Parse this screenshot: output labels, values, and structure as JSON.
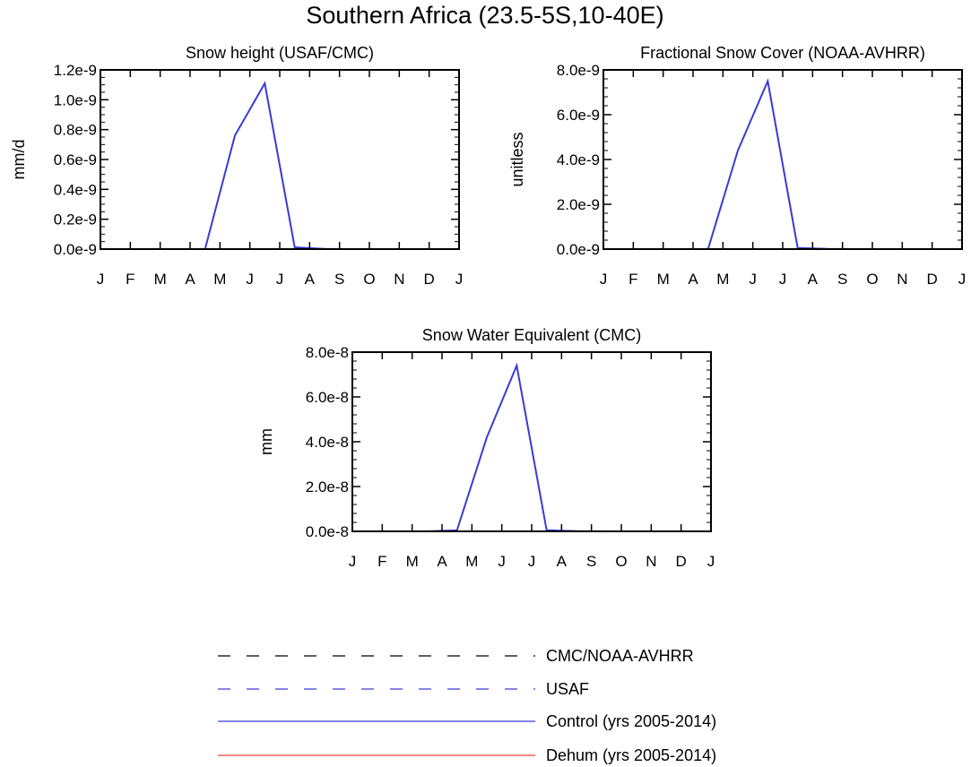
{
  "figure": {
    "title": "Southern Africa (23.5-5S,10-40E)"
  },
  "months": [
    "J",
    "F",
    "M",
    "A",
    "M",
    "J",
    "J",
    "A",
    "S",
    "O",
    "N",
    "D",
    "J"
  ],
  "colors": {
    "axis": "#000000",
    "cmc_noaa": "#000000",
    "usaf": "#3a3ad6",
    "control": "#3a3ad6",
    "dehum": "#e8483f"
  },
  "legend": [
    {
      "key": "cmc_noaa",
      "label": "CMC/NOAA-AVHRR",
      "color": "#000000",
      "style": "dashed"
    },
    {
      "key": "usaf",
      "label": "USAF",
      "color": "#3a3ad6",
      "style": "dashed"
    },
    {
      "key": "control",
      "label": "Control (yrs 2005-2014)",
      "color": "#3a3ad6",
      "style": "solid"
    },
    {
      "key": "dehum",
      "label": "Dehum (yrs 2005-2014)",
      "color": "#e8483f",
      "style": "solid"
    }
  ],
  "chart_data": [
    {
      "type": "line",
      "title": "Snow height (USAF/CMC)",
      "ylabel": "mm/d",
      "xlabel": "",
      "x": [
        0.5,
        1.5,
        2.5,
        3.5,
        4.5,
        5.5,
        6.5,
        7.5,
        8.5,
        9.5,
        10.5,
        11.5
      ],
      "ylim": [
        0,
        1.2e-09
      ],
      "yticks": [
        0,
        2e-10,
        4e-10,
        6e-10,
        8e-10,
        1e-09,
        1.2e-09
      ],
      "yticklabels": [
        "0.0e-9",
        "0.2e-9",
        "0.4e-9",
        "0.6e-9",
        "0.8e-9",
        "1.0e-9",
        "1.2e-9"
      ],
      "series": [
        {
          "name": "Control (yrs 2005-2014)",
          "key": "control",
          "values": [
            0,
            0,
            0,
            0,
            7.6e-10,
            1.11e-09,
            1.2e-11,
            2e-12,
            0,
            0,
            0,
            0
          ]
        },
        {
          "name": "CMC/NOAA-AVHRR",
          "key": "cmc_noaa",
          "values": [
            0,
            0,
            0,
            0,
            0,
            0,
            0,
            0,
            0,
            0,
            0,
            0
          ]
        }
      ]
    },
    {
      "type": "line",
      "title": "Fractional Snow Cover (NOAA-AVHRR)",
      "ylabel": "unitless",
      "xlabel": "",
      "x": [
        0.5,
        1.5,
        2.5,
        3.5,
        4.5,
        5.5,
        6.5,
        7.5,
        8.5,
        9.5,
        10.5,
        11.5
      ],
      "ylim": [
        0,
        8e-09
      ],
      "yticks": [
        0,
        2e-09,
        4e-09,
        6e-09,
        8e-09
      ],
      "yticklabels": [
        "0.0e-9",
        "2.0e-9",
        "4.0e-9",
        "6.0e-9",
        "8.0e-9"
      ],
      "series": [
        {
          "name": "Control (yrs 2005-2014)",
          "key": "control",
          "values": [
            0,
            0,
            0,
            0,
            4.4e-09,
            7.5e-09,
            5e-11,
            1e-11,
            0,
            0,
            0,
            0
          ]
        },
        {
          "name": "CMC/NOAA-AVHRR",
          "key": "cmc_noaa",
          "values": [
            0,
            0,
            0,
            0,
            0,
            0,
            0,
            0,
            0,
            0,
            0,
            0
          ]
        }
      ]
    },
    {
      "type": "line",
      "title": "Snow Water Equivalent (CMC)",
      "ylabel": "mm",
      "xlabel": "",
      "x": [
        0.5,
        1.5,
        2.5,
        3.5,
        4.5,
        5.5,
        6.5,
        7.5,
        8.5,
        9.5,
        10.5,
        11.5
      ],
      "ylim": [
        0,
        8e-08
      ],
      "yticks": [
        0,
        2e-08,
        4e-08,
        6e-08,
        8e-08
      ],
      "yticklabels": [
        "0.0e-8",
        "2.0e-8",
        "4.0e-8",
        "6.0e-8",
        "8.0e-8"
      ],
      "series": [
        {
          "name": "Control (yrs 2005-2014)",
          "key": "control",
          "values": [
            0,
            0,
            0,
            5e-10,
            4.2e-08,
            7.4e-08,
            5e-10,
            1e-10,
            0,
            0,
            0,
            0
          ]
        },
        {
          "name": "CMC/NOAA-AVHRR",
          "key": "cmc_noaa",
          "values": [
            0,
            0,
            0,
            0,
            0,
            0,
            0,
            0,
            0,
            0,
            0,
            0
          ]
        }
      ]
    }
  ]
}
